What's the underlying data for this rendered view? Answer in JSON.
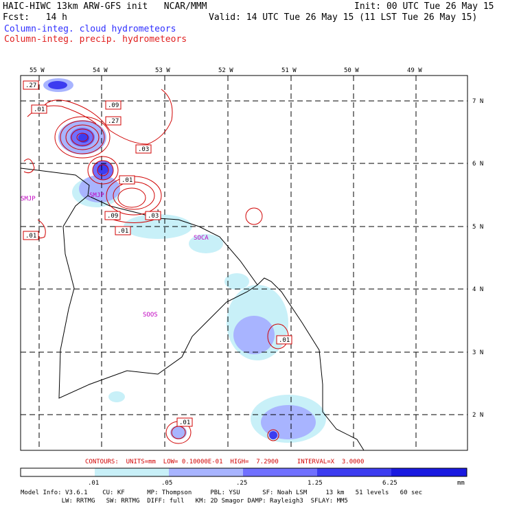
{
  "header": {
    "line1_left": "HAIC-HIWC 13km ARW-GFS init   NCAR/MMM",
    "line1_right": "Init: 00 UTC Tue 26 May 15",
    "line2_left": "Fcst:   14 h",
    "line2_right": "Valid: 14 UTC Tue 26 May 15 (11 LST Tue 26 May 15)",
    "legend_cloud": "Column-integ. cloud hydrometeors",
    "legend_precip": "Column-integ. precip. hydrometeors"
  },
  "map": {
    "lon_labels": [
      "55 W",
      "54 W",
      "53 W",
      "52 W",
      "51 W",
      "50 W",
      "49 W"
    ],
    "lat_labels": [
      "7 N",
      "6 N",
      "5 N",
      "4 N",
      "3 N",
      "2 N"
    ],
    "region_labels": [
      "SMJP",
      "SOCA",
      "SOOS"
    ],
    "region_label_faint": "SMJP",
    "contour_labels": [
      ".27",
      ".01",
      ".09",
      ".27",
      ".03",
      ".01",
      ".09",
      ".03",
      ".01",
      ".01",
      ".01",
      ".01"
    ]
  },
  "contour_info": {
    "text": "CONTOURS:  UNITS=mm  LOW= 0.10000E-01  HIGH=  7.2900     INTERVAL=X  3.0000"
  },
  "colorbar": {
    "colors": [
      "#ffffff",
      "#c8f0f8",
      "#a8b4ff",
      "#7070ff",
      "#3c3cf0",
      "#1a1ae0"
    ],
    "tick_labels": [
      ".01",
      ".05",
      ".25",
      "1.25",
      "6.25"
    ],
    "units": "mm"
  },
  "model_info": {
    "line1": "Model Info: V3.6.1    CU: KF      MP: Thompson     PBL: YSU      SF: Noah LSM     13 km   51 levels   60 sec",
    "line2": "           LW: RRTMG   SW: RRTMG  DIFF: full   KM: 2D Smagor DAMP: Rayleigh3  SFLAY: MM5"
  }
}
